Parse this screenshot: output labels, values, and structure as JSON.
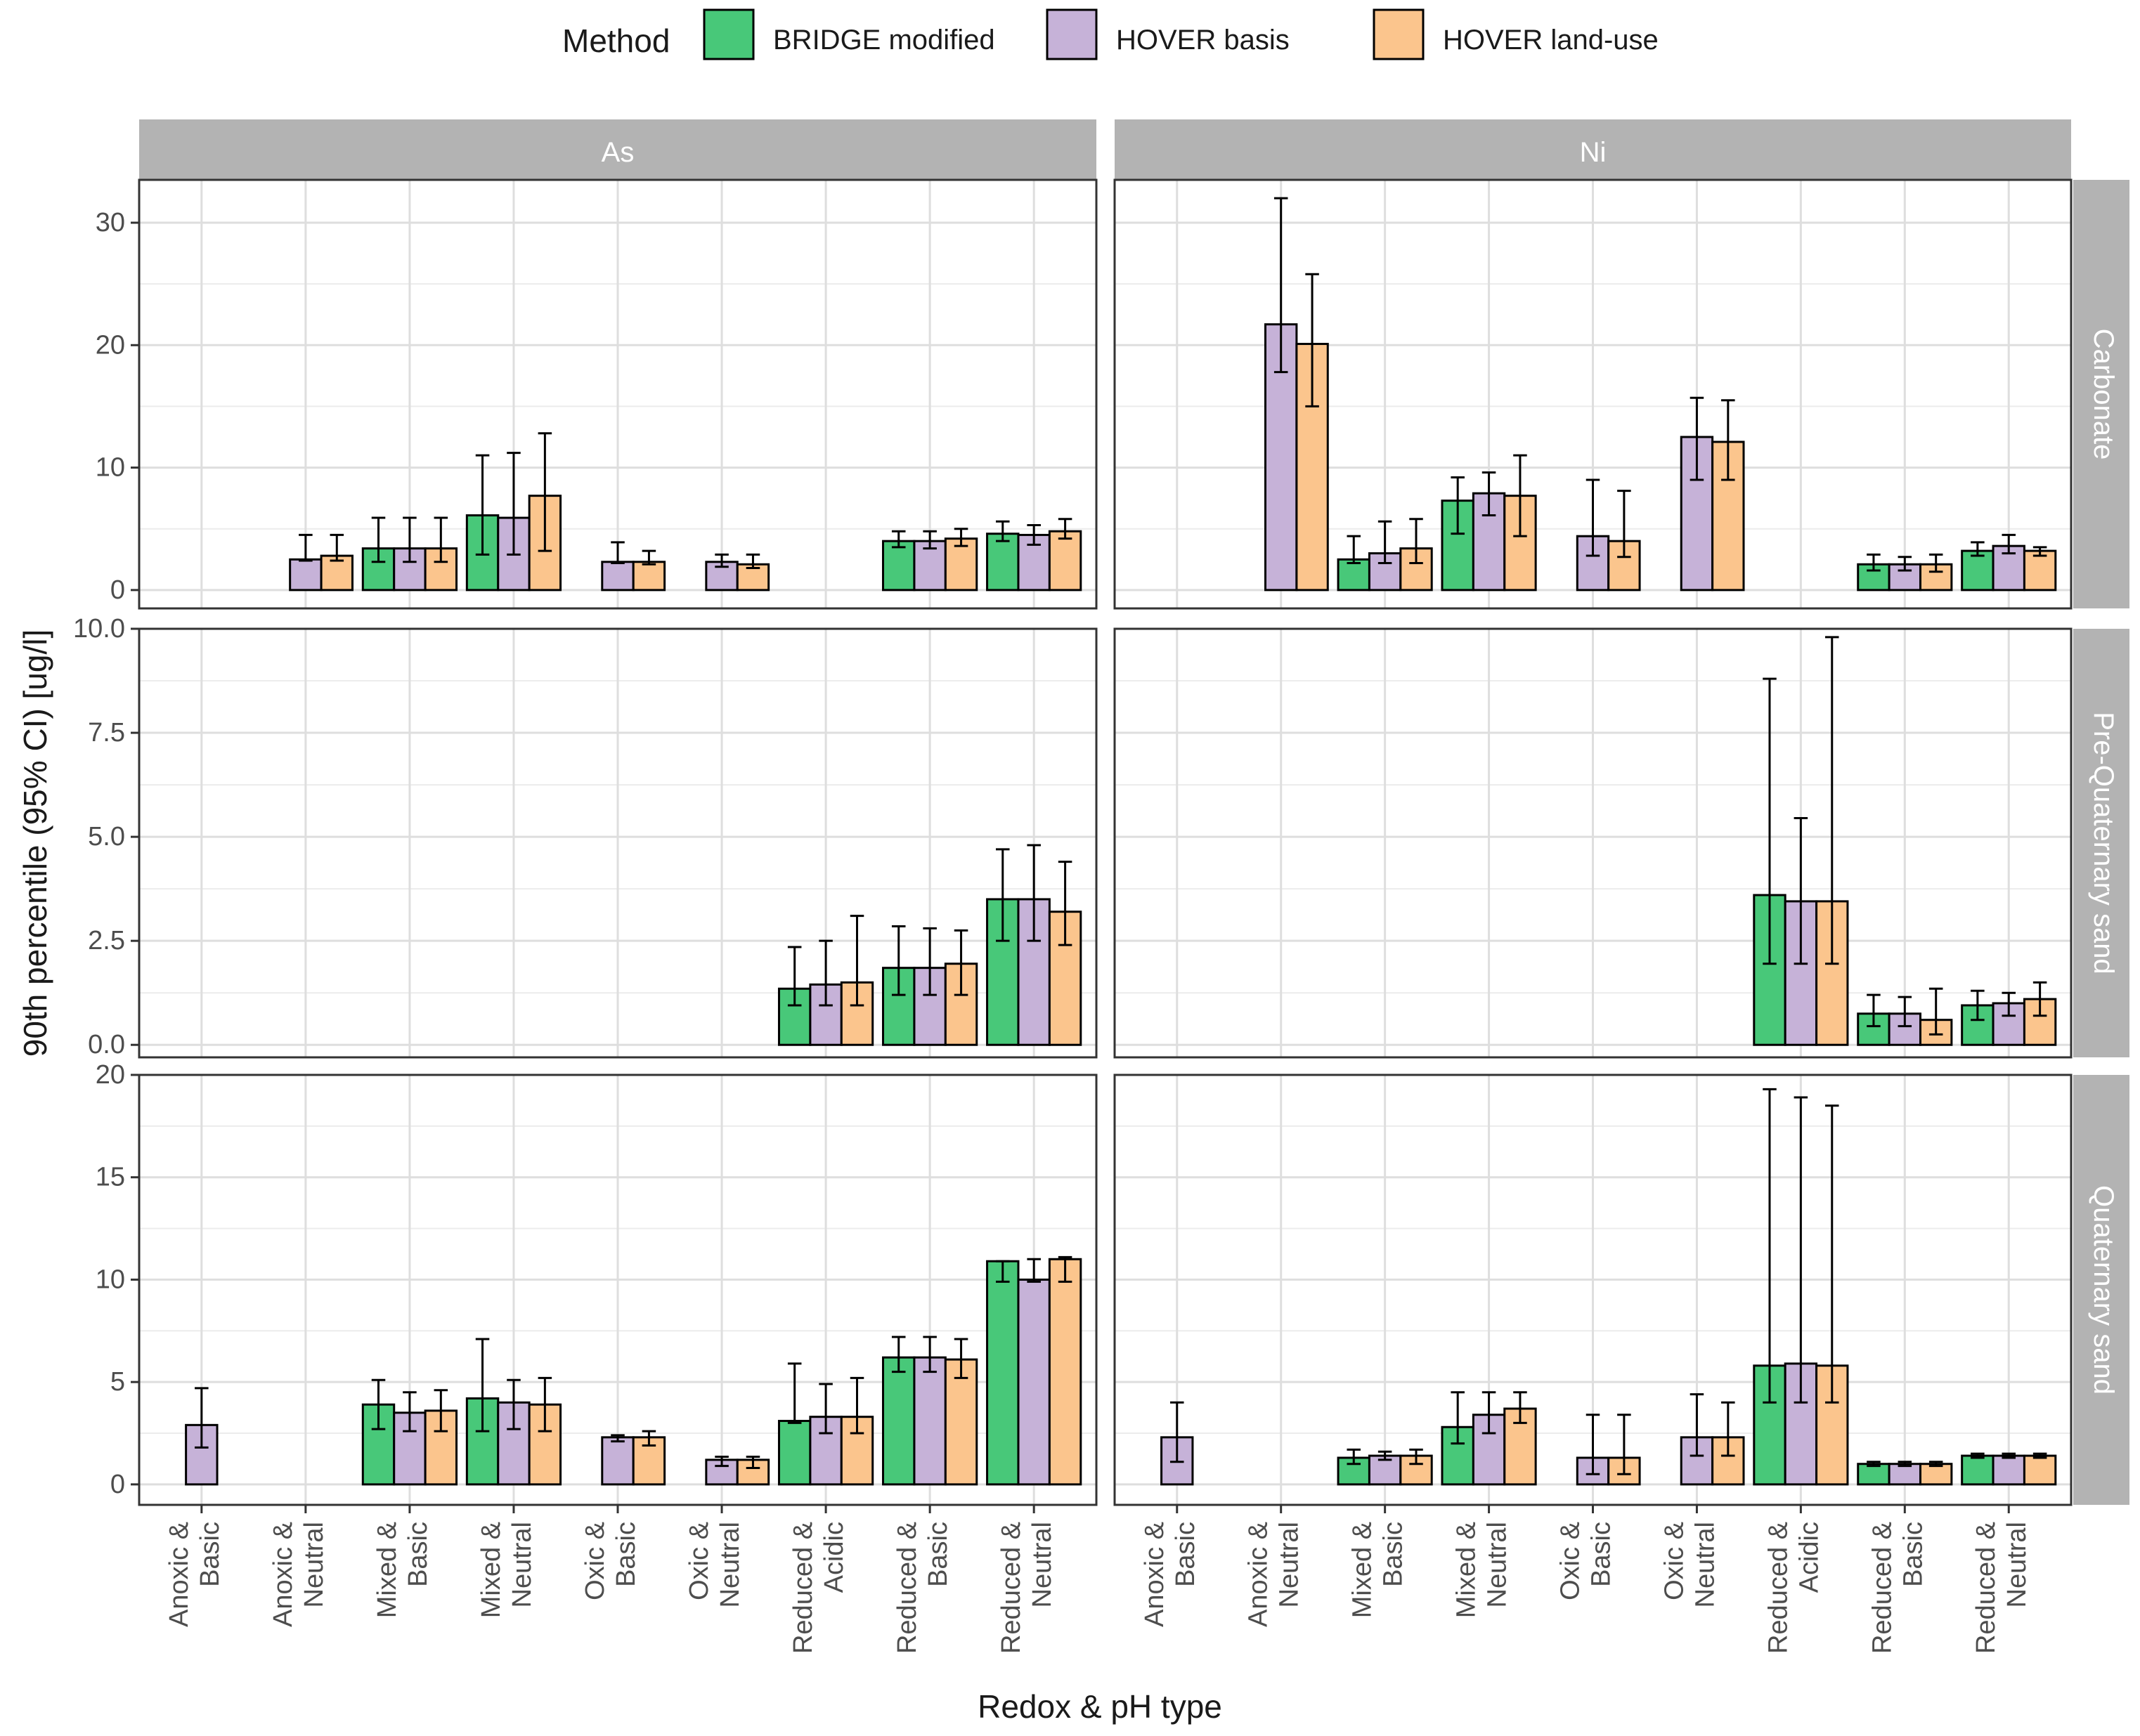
{
  "chart_data": {
    "type": "bar",
    "legend": {
      "title": "Method",
      "position": "top",
      "entries": [
        {
          "name": "BRIDGE modified",
          "color": "#48c879"
        },
        {
          "name": "HOVER basis",
          "color": "#c6b2d8"
        },
        {
          "name": "HOVER land-use",
          "color": "#fbc58d"
        }
      ]
    },
    "xlabel": "Redox & pH type",
    "ylabel": "90th percentile (95% CI) [ug/l]",
    "categories": [
      [
        "Anoxic &",
        "Basic"
      ],
      [
        "Anoxic &",
        "Neutral"
      ],
      [
        "Mixed &",
        "Basic"
      ],
      [
        "Mixed &",
        "Neutral"
      ],
      [
        "Oxic &",
        "Basic"
      ],
      [
        "Oxic &",
        "Neutral"
      ],
      [
        "Reduced &",
        "Acidic"
      ],
      [
        "Reduced &",
        "Basic"
      ],
      [
        "Reduced &",
        "Neutral"
      ]
    ],
    "column_strips": [
      "As",
      "Ni"
    ],
    "row_strips": [
      "Carbonate",
      "Pre-Quaternary sand",
      "Quaternary sand"
    ],
    "panel_rows": [
      {
        "ylim": [
          -1.5,
          33.5
        ],
        "yticks": [
          0,
          10,
          20,
          30
        ],
        "ytick_labels": [
          "0",
          "10",
          "20",
          "30"
        ],
        "panels": [
          {
            "bars": [
              {
                "cat": 1,
                "series": 1,
                "value": 2.5,
                "low": 2.4,
                "high": 4.5
              },
              {
                "cat": 1,
                "series": 2,
                "value": 2.8,
                "low": 2.4,
                "high": 4.5
              },
              {
                "cat": 2,
                "series": 0,
                "value": 3.4,
                "low": 2.3,
                "high": 5.9
              },
              {
                "cat": 2,
                "series": 1,
                "value": 3.4,
                "low": 2.3,
                "high": 5.9
              },
              {
                "cat": 2,
                "series": 2,
                "value": 3.4,
                "low": 2.3,
                "high": 5.9
              },
              {
                "cat": 3,
                "series": 0,
                "value": 6.1,
                "low": 2.9,
                "high": 11.0
              },
              {
                "cat": 3,
                "series": 1,
                "value": 5.9,
                "low": 2.9,
                "high": 11.2
              },
              {
                "cat": 3,
                "series": 2,
                "value": 7.7,
                "low": 3.2,
                "high": 12.8
              },
              {
                "cat": 4,
                "series": 1,
                "value": 2.3,
                "low": 2.2,
                "high": 3.9
              },
              {
                "cat": 4,
                "series": 2,
                "value": 2.3,
                "low": 2.1,
                "high": 3.2
              },
              {
                "cat": 5,
                "series": 1,
                "value": 2.3,
                "low": 1.9,
                "high": 2.9
              },
              {
                "cat": 5,
                "series": 2,
                "value": 2.1,
                "low": 1.8,
                "high": 2.9
              },
              {
                "cat": 7,
                "series": 0,
                "value": 4.0,
                "low": 3.5,
                "high": 4.8
              },
              {
                "cat": 7,
                "series": 1,
                "value": 4.0,
                "low": 3.4,
                "high": 4.8
              },
              {
                "cat": 7,
                "series": 2,
                "value": 4.2,
                "low": 3.6,
                "high": 5.0
              },
              {
                "cat": 8,
                "series": 0,
                "value": 4.6,
                "low": 4.0,
                "high": 5.6
              },
              {
                "cat": 8,
                "series": 1,
                "value": 4.5,
                "low": 3.7,
                "high": 5.3
              },
              {
                "cat": 8,
                "series": 2,
                "value": 4.8,
                "low": 4.2,
                "high": 5.8
              }
            ]
          },
          {
            "bars": [
              {
                "cat": 1,
                "series": 1,
                "value": 21.7,
                "low": 17.8,
                "high": 32.0
              },
              {
                "cat": 1,
                "series": 2,
                "value": 20.1,
                "low": 15.0,
                "high": 25.8
              },
              {
                "cat": 2,
                "series": 0,
                "value": 2.5,
                "low": 2.2,
                "high": 4.4
              },
              {
                "cat": 2,
                "series": 1,
                "value": 3.0,
                "low": 2.2,
                "high": 5.6
              },
              {
                "cat": 2,
                "series": 2,
                "value": 3.4,
                "low": 2.2,
                "high": 5.8
              },
              {
                "cat": 3,
                "series": 0,
                "value": 7.3,
                "low": 4.6,
                "high": 9.2
              },
              {
                "cat": 3,
                "series": 1,
                "value": 7.9,
                "low": 6.1,
                "high": 9.6
              },
              {
                "cat": 3,
                "series": 2,
                "value": 7.7,
                "low": 4.4,
                "high": 11.0
              },
              {
                "cat": 4,
                "series": 1,
                "value": 4.4,
                "low": 2.8,
                "high": 9.0
              },
              {
                "cat": 4,
                "series": 2,
                "value": 4.0,
                "low": 2.7,
                "high": 8.1
              },
              {
                "cat": 5,
                "series": 1,
                "value": 12.5,
                "low": 9.0,
                "high": 15.7
              },
              {
                "cat": 5,
                "series": 2,
                "value": 12.1,
                "low": 9.0,
                "high": 15.5
              },
              {
                "cat": 7,
                "series": 0,
                "value": 2.1,
                "low": 1.6,
                "high": 2.9
              },
              {
                "cat": 7,
                "series": 1,
                "value": 2.1,
                "low": 1.6,
                "high": 2.7
              },
              {
                "cat": 7,
                "series": 2,
                "value": 2.1,
                "low": 1.5,
                "high": 2.9
              },
              {
                "cat": 8,
                "series": 0,
                "value": 3.2,
                "low": 2.8,
                "high": 3.9
              },
              {
                "cat": 8,
                "series": 1,
                "value": 3.6,
                "low": 3.0,
                "high": 4.5
              },
              {
                "cat": 8,
                "series": 2,
                "value": 3.2,
                "low": 2.8,
                "high": 3.5
              }
            ]
          }
        ]
      },
      {
        "ylim": [
          -0.3,
          10.0
        ],
        "yticks": [
          0,
          2.5,
          5.0,
          7.5,
          10.0
        ],
        "ytick_labels": [
          "0.0",
          "2.5",
          "5.0",
          "7.5",
          "10.0"
        ],
        "panels": [
          {
            "bars": [
              {
                "cat": 6,
                "series": 0,
                "value": 1.35,
                "low": 0.95,
                "high": 2.35
              },
              {
                "cat": 6,
                "series": 1,
                "value": 1.45,
                "low": 0.95,
                "high": 2.5
              },
              {
                "cat": 6,
                "series": 2,
                "value": 1.5,
                "low": 0.95,
                "high": 3.1
              },
              {
                "cat": 7,
                "series": 0,
                "value": 1.85,
                "low": 1.2,
                "high": 2.85
              },
              {
                "cat": 7,
                "series": 1,
                "value": 1.85,
                "low": 1.2,
                "high": 2.8
              },
              {
                "cat": 7,
                "series": 2,
                "value": 1.95,
                "low": 1.2,
                "high": 2.75
              },
              {
                "cat": 8,
                "series": 0,
                "value": 3.5,
                "low": 2.5,
                "high": 4.7
              },
              {
                "cat": 8,
                "series": 1,
                "value": 3.5,
                "low": 2.5,
                "high": 4.8
              },
              {
                "cat": 8,
                "series": 2,
                "value": 3.2,
                "low": 2.4,
                "high": 4.4
              }
            ]
          },
          {
            "bars": [
              {
                "cat": 6,
                "series": 0,
                "value": 3.6,
                "low": 1.95,
                "high": 8.8
              },
              {
                "cat": 6,
                "series": 1,
                "value": 3.45,
                "low": 1.95,
                "high": 5.45
              },
              {
                "cat": 6,
                "series": 2,
                "value": 3.45,
                "low": 1.95,
                "high": 9.8
              },
              {
                "cat": 7,
                "series": 0,
                "value": 0.75,
                "low": 0.45,
                "high": 1.2
              },
              {
                "cat": 7,
                "series": 1,
                "value": 0.75,
                "low": 0.45,
                "high": 1.15
              },
              {
                "cat": 7,
                "series": 2,
                "value": 0.6,
                "low": 0.25,
                "high": 1.35
              },
              {
                "cat": 8,
                "series": 0,
                "value": 0.95,
                "low": 0.6,
                "high": 1.3
              },
              {
                "cat": 8,
                "series": 1,
                "value": 1.0,
                "low": 0.7,
                "high": 1.25
              },
              {
                "cat": 8,
                "series": 2,
                "value": 1.1,
                "low": 0.7,
                "high": 1.5
              }
            ]
          }
        ]
      },
      {
        "ylim": [
          -1.0,
          20.0
        ],
        "yticks": [
          0,
          5,
          10,
          15,
          20
        ],
        "ytick_labels": [
          "0",
          "5",
          "10",
          "15",
          "20"
        ],
        "panels": [
          {
            "bars": [
              {
                "cat": 0,
                "series": 1,
                "value": 2.9,
                "low": 1.8,
                "high": 4.7
              },
              {
                "cat": 2,
                "series": 0,
                "value": 3.9,
                "low": 2.7,
                "high": 5.1
              },
              {
                "cat": 2,
                "series": 1,
                "value": 3.5,
                "low": 2.6,
                "high": 4.5
              },
              {
                "cat": 2,
                "series": 2,
                "value": 3.6,
                "low": 2.6,
                "high": 4.6
              },
              {
                "cat": 3,
                "series": 0,
                "value": 4.2,
                "low": 2.6,
                "high": 7.1
              },
              {
                "cat": 3,
                "series": 1,
                "value": 4.0,
                "low": 2.7,
                "high": 5.1
              },
              {
                "cat": 3,
                "series": 2,
                "value": 3.9,
                "low": 2.6,
                "high": 5.2
              },
              {
                "cat": 4,
                "series": 1,
                "value": 2.3,
                "low": 2.1,
                "high": 2.4
              },
              {
                "cat": 4,
                "series": 2,
                "value": 2.3,
                "low": 1.9,
                "high": 2.6
              },
              {
                "cat": 5,
                "series": 1,
                "value": 1.2,
                "low": 0.9,
                "high": 1.35
              },
              {
                "cat": 5,
                "series": 2,
                "value": 1.2,
                "low": 0.8,
                "high": 1.35
              },
              {
                "cat": 6,
                "series": 0,
                "value": 3.1,
                "low": 3.0,
                "high": 5.9
              },
              {
                "cat": 6,
                "series": 1,
                "value": 3.3,
                "low": 2.5,
                "high": 4.9
              },
              {
                "cat": 6,
                "series": 2,
                "value": 3.3,
                "low": 2.5,
                "high": 5.2
              },
              {
                "cat": 7,
                "series": 0,
                "value": 6.2,
                "low": 5.5,
                "high": 7.2
              },
              {
                "cat": 7,
                "series": 1,
                "value": 6.2,
                "low": 5.5,
                "high": 7.2
              },
              {
                "cat": 7,
                "series": 2,
                "value": 6.1,
                "low": 5.2,
                "high": 7.1
              },
              {
                "cat": 8,
                "series": 0,
                "value": 10.9,
                "low": 9.9,
                "high": 10.9
              },
              {
                "cat": 8,
                "series": 1,
                "value": 10.0,
                "low": 9.9,
                "high": 11.0
              },
              {
                "cat": 8,
                "series": 2,
                "value": 11.0,
                "low": 9.9,
                "high": 11.1
              }
            ]
          },
          {
            "bars": [
              {
                "cat": 0,
                "series": 1,
                "value": 2.3,
                "low": 1.1,
                "high": 4.0
              },
              {
                "cat": 2,
                "series": 0,
                "value": 1.3,
                "low": 1.0,
                "high": 1.7
              },
              {
                "cat": 2,
                "series": 1,
                "value": 1.4,
                "low": 1.2,
                "high": 1.6
              },
              {
                "cat": 2,
                "series": 2,
                "value": 1.4,
                "low": 1.0,
                "high": 1.7
              },
              {
                "cat": 3,
                "series": 0,
                "value": 2.8,
                "low": 2.0,
                "high": 4.5
              },
              {
                "cat": 3,
                "series": 1,
                "value": 3.4,
                "low": 2.5,
                "high": 4.5
              },
              {
                "cat": 3,
                "series": 2,
                "value": 3.7,
                "low": 3.0,
                "high": 4.5
              },
              {
                "cat": 4,
                "series": 1,
                "value": 1.3,
                "low": 0.5,
                "high": 3.4
              },
              {
                "cat": 4,
                "series": 2,
                "value": 1.3,
                "low": 0.5,
                "high": 3.4
              },
              {
                "cat": 5,
                "series": 1,
                "value": 2.3,
                "low": 1.4,
                "high": 4.4
              },
              {
                "cat": 5,
                "series": 2,
                "value": 2.3,
                "low": 1.4,
                "high": 4.0
              },
              {
                "cat": 6,
                "series": 0,
                "value": 5.8,
                "low": 4.0,
                "high": 19.3
              },
              {
                "cat": 6,
                "series": 1,
                "value": 5.9,
                "low": 4.0,
                "high": 18.9
              },
              {
                "cat": 6,
                "series": 2,
                "value": 5.8,
                "low": 4.0,
                "high": 18.5
              },
              {
                "cat": 7,
                "series": 0,
                "value": 1.0,
                "low": 0.9,
                "high": 1.1
              },
              {
                "cat": 7,
                "series": 1,
                "value": 1.0,
                "low": 0.9,
                "high": 1.1
              },
              {
                "cat": 7,
                "series": 2,
                "value": 1.0,
                "low": 0.9,
                "high": 1.1
              },
              {
                "cat": 8,
                "series": 0,
                "value": 1.4,
                "low": 1.3,
                "high": 1.5
              },
              {
                "cat": 8,
                "series": 1,
                "value": 1.4,
                "low": 1.3,
                "high": 1.5
              },
              {
                "cat": 8,
                "series": 2,
                "value": 1.4,
                "low": 1.3,
                "high": 1.5
              }
            ]
          }
        ]
      }
    ]
  }
}
